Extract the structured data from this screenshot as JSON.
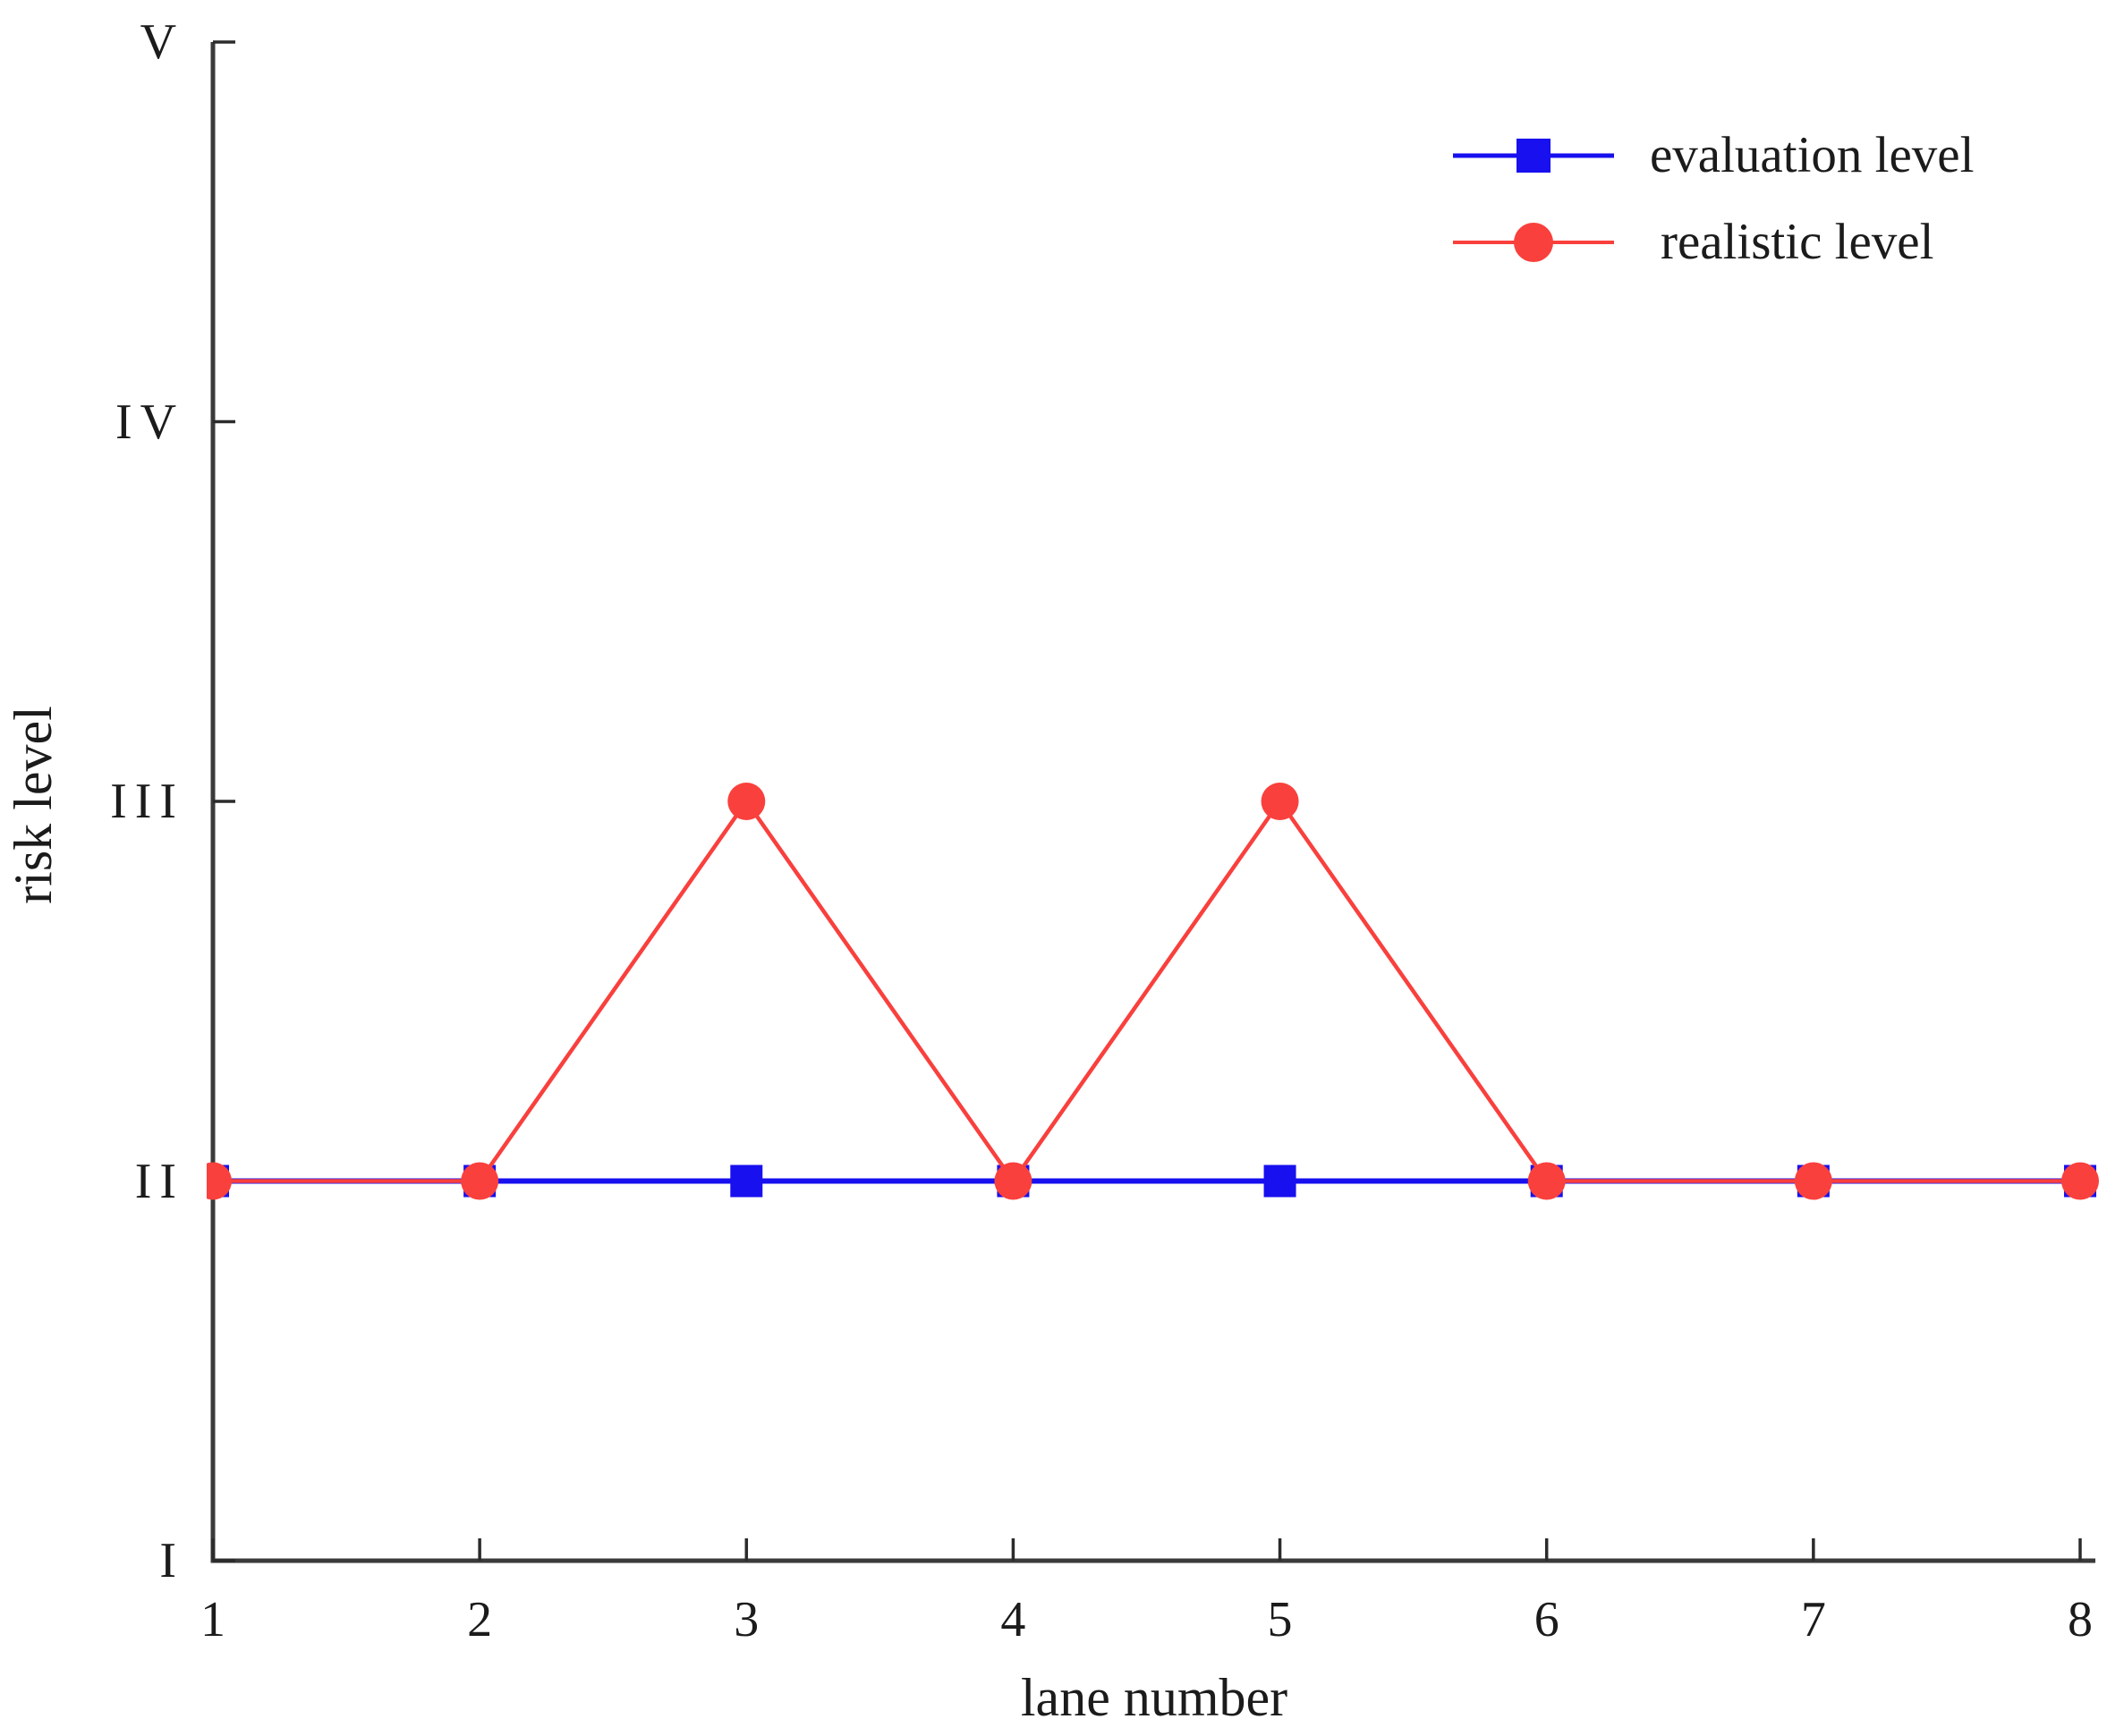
{
  "figure": {
    "background": "#ffffff",
    "text_color": "#1b1b1b",
    "axis_color": "#3a3a3a"
  },
  "chart_data": {
    "type": "line",
    "title": "",
    "xlabel": "lane number",
    "ylabel": "risk level",
    "x": [
      1,
      2,
      3,
      4,
      5,
      6,
      7,
      8
    ],
    "x_tick_labels": [
      "1",
      "2",
      "3",
      "4",
      "5",
      "6",
      "7",
      "8"
    ],
    "y_tick_values": [
      1,
      2,
      3,
      4,
      5
    ],
    "y_tick_labels": [
      "I",
      "II",
      "III",
      "IV",
      "V"
    ],
    "xlim": [
      1,
      8
    ],
    "ylim": [
      1,
      5
    ],
    "grid": false,
    "legend_position": "top-right",
    "series": [
      {
        "name": "evaluation level",
        "color": "#1810ee",
        "marker": "square",
        "values": [
          2,
          2,
          2,
          2,
          2,
          2,
          2,
          2
        ]
      },
      {
        "name": "realistic level",
        "color": "#f9403d",
        "marker": "circle",
        "values": [
          2,
          2,
          3,
          2,
          3,
          2,
          2,
          2
        ]
      }
    ]
  }
}
